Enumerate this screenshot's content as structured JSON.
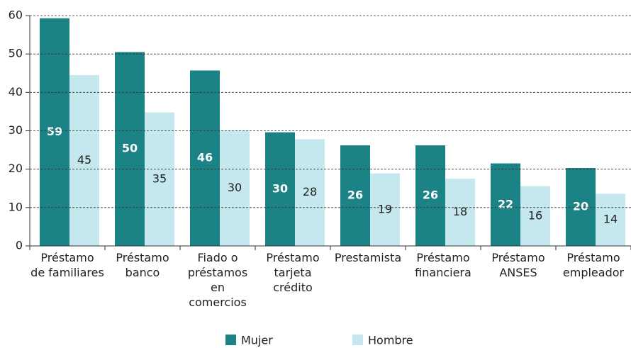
{
  "chart_data": {
    "type": "bar",
    "categories": [
      "Préstamo\nde familiares",
      "Préstamo\nbanco",
      "Fiado o\npréstamos en\ncomercios",
      "Préstamo\ntarjeta\ncrédito",
      "Prestamista",
      "Préstamo\nfinanciera",
      "Préstamo\nANSES",
      "Préstamo\nempleador"
    ],
    "series": [
      {
        "name": "Mujer",
        "color": "#1b8285",
        "values": [
          59.3,
          50.5,
          45.7,
          29.6,
          26.2,
          26.2,
          21.5,
          20.3
        ],
        "value_labels": [
          "59",
          "50",
          "46",
          "30",
          "26",
          "26",
          "22",
          "20"
        ]
      },
      {
        "name": "Hombre",
        "color": "#c5e8ee",
        "values": [
          44.5,
          34.8,
          30.1,
          27.8,
          18.9,
          17.5,
          15.6,
          13.6
        ],
        "value_labels": [
          "45",
          "35",
          "30",
          "28",
          "19",
          "18",
          "16",
          "14"
        ]
      }
    ],
    "ylim": [
      0,
      60
    ],
    "yticks": [
      0,
      10,
      20,
      30,
      40,
      50,
      60
    ],
    "grid": true
  }
}
